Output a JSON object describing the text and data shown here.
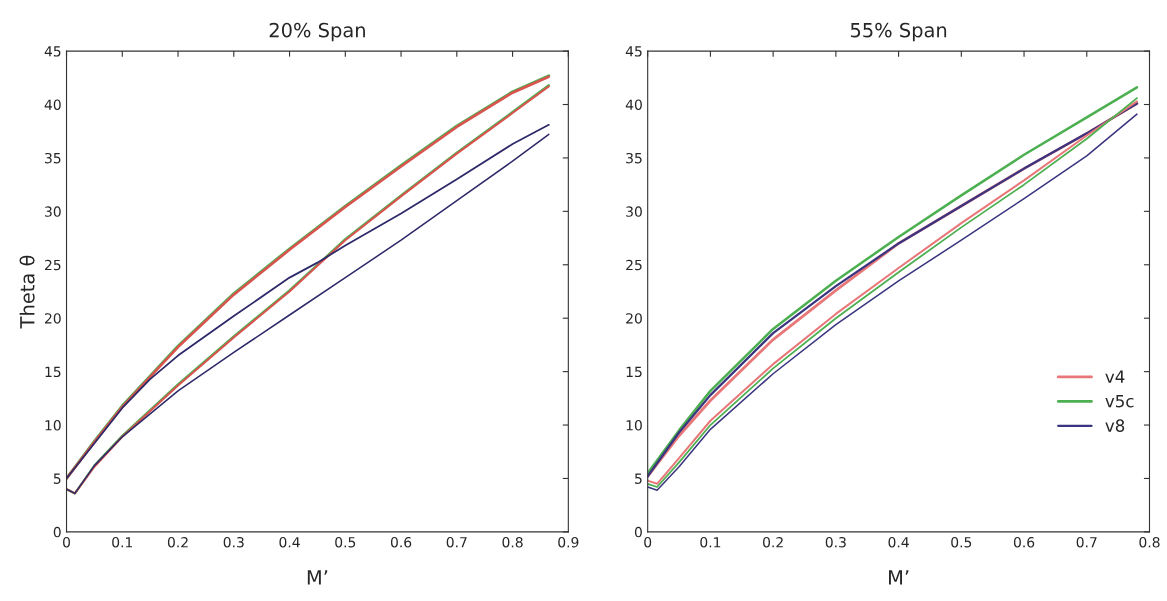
{
  "chart_data": [
    {
      "type": "line",
      "title": "20% Span",
      "xlabel": "M’",
      "ylabel": "Theta θ",
      "xlim": [
        0,
        0.9
      ],
      "ylim": [
        0,
        45
      ],
      "xticks": [
        0,
        0.1,
        0.2,
        0.3,
        0.4,
        0.5,
        0.6,
        0.7,
        0.8,
        0.9
      ],
      "yticks": [
        0,
        5,
        10,
        15,
        20,
        25,
        30,
        35,
        40,
        45
      ],
      "grid": false,
      "legend": false,
      "series": [
        {
          "color": "#4caf50",
          "x": [
            0,
            0.05,
            0.1,
            0.15,
            0.2,
            0.3,
            0.4,
            0.5,
            0.6,
            0.7,
            0.8,
            0.865
          ],
          "values": [
            5,
            8.5,
            11.8,
            14.6,
            17.4,
            22.3,
            26.5,
            30.5,
            34.3,
            38,
            41.2,
            42.7
          ]
        },
        {
          "color": "#d9534f",
          "x": [
            0,
            0.05,
            0.1,
            0.15,
            0.2,
            0.3,
            0.4,
            0.5,
            0.6,
            0.7,
            0.8,
            0.865
          ],
          "values": [
            5,
            8.4,
            11.7,
            14.5,
            17.3,
            22.2,
            26.4,
            30.4,
            34.2,
            37.9,
            41.1,
            42.6
          ]
        },
        {
          "color": "#4caf50",
          "x": [
            0,
            0.015,
            0.05,
            0.1,
            0.2,
            0.3,
            0.4,
            0.45,
            0.5,
            0.6,
            0.7,
            0.8,
            0.865
          ],
          "values": [
            4,
            3.6,
            6.2,
            9,
            13.8,
            18.3,
            22.6,
            25,
            27.4,
            31.5,
            35.5,
            39.3,
            41.8
          ]
        },
        {
          "color": "#d9534f",
          "x": [
            0,
            0.015,
            0.05,
            0.1,
            0.2,
            0.3,
            0.4,
            0.45,
            0.5,
            0.6,
            0.7,
            0.8,
            0.865
          ],
          "values": [
            4,
            3.6,
            6.1,
            8.9,
            13.7,
            18.2,
            22.5,
            24.9,
            27.3,
            31.4,
            35.4,
            39.2,
            41.7
          ]
        },
        {
          "color": "#2e2a6a",
          "x": [
            0,
            0.05,
            0.1,
            0.15,
            0.2,
            0.3,
            0.4,
            0.45,
            0.5,
            0.6,
            0.7,
            0.8,
            0.865
          ],
          "values": [
            5,
            8.3,
            11.6,
            14.3,
            16.5,
            20.2,
            23.8,
            25.2,
            26.8,
            29.8,
            33,
            36.3,
            38.1
          ]
        },
        {
          "color": "#2e2a6a",
          "x": [
            0,
            0.015,
            0.05,
            0.1,
            0.2,
            0.3,
            0.4,
            0.5,
            0.6,
            0.7,
            0.8,
            0.865
          ],
          "values": [
            4,
            3.6,
            6.2,
            8.9,
            13.2,
            16.8,
            20.3,
            23.8,
            27.3,
            31,
            34.7,
            37.2
          ]
        }
      ]
    },
    {
      "type": "line",
      "title": "55% Span",
      "xlabel": "M’",
      "xlim": [
        0,
        0.8
      ],
      "ylim": [
        0,
        45
      ],
      "xticks": [
        0,
        0.1,
        0.2,
        0.3,
        0.4,
        0.5,
        0.6,
        0.7,
        0.8
      ],
      "yticks": [
        0,
        5,
        10,
        15,
        20,
        25,
        30,
        35,
        40,
        45
      ],
      "grid": false,
      "legend": "bottom right",
      "series": [
        {
          "name": "v4",
          "color": "#e8777a",
          "x": [
            0,
            0.05,
            0.1,
            0.2,
            0.3,
            0.4,
            0.5,
            0.6,
            0.7,
            0.78
          ],
          "values": [
            5.2,
            9,
            12.3,
            18,
            22.6,
            27,
            30.5,
            34,
            37.3,
            40.1
          ]
        },
        {
          "name": "v5c",
          "color": "#4caf50",
          "x": [
            0,
            0.05,
            0.1,
            0.2,
            0.3,
            0.4,
            0.5,
            0.6,
            0.7,
            0.78
          ],
          "values": [
            5.5,
            9.5,
            13.2,
            19,
            23.5,
            27.6,
            31.5,
            35.3,
            38.8,
            41.6
          ]
        },
        {
          "name": "v8",
          "color": "#3a3580",
          "x": [
            0,
            0.05,
            0.1,
            0.2,
            0.3,
            0.4,
            0.5,
            0.6,
            0.7,
            0.78
          ],
          "values": [
            5.2,
            9.3,
            12.8,
            18.6,
            23,
            27,
            30.5,
            34,
            37.3,
            40.1
          ]
        },
        {
          "color": "#e8777a",
          "x": [
            0,
            0.015,
            0.05,
            0.1,
            0.2,
            0.3,
            0.4,
            0.5,
            0.6,
            0.7,
            0.78
          ],
          "values": [
            4.8,
            4.5,
            6.9,
            10.4,
            15.7,
            20.4,
            24.7,
            28.9,
            32.9,
            37.1,
            40.3
          ]
        },
        {
          "color": "#4caf50",
          "x": [
            0,
            0.015,
            0.05,
            0.1,
            0.2,
            0.3,
            0.4,
            0.5,
            0.6,
            0.7,
            0.78
          ],
          "values": [
            4.5,
            4.2,
            6.5,
            10,
            15.3,
            20,
            24.3,
            28.5,
            32.5,
            36.8,
            40.6
          ]
        },
        {
          "color": "#3a3580",
          "x": [
            0,
            0.015,
            0.05,
            0.1,
            0.2,
            0.3,
            0.4,
            0.5,
            0.6,
            0.7,
            0.78
          ],
          "values": [
            4.2,
            3.9,
            6.1,
            9.6,
            14.8,
            19.4,
            23.5,
            27.3,
            31.2,
            35.2,
            39.1
          ]
        }
      ]
    }
  ]
}
